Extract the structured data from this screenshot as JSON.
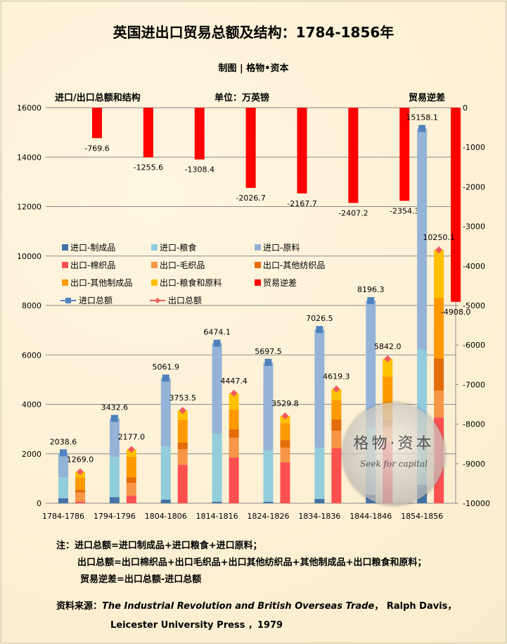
{
  "title": "英国进出口贸易总额及结构：1784-1856年",
  "subtitle": "制图 | 格物•资本",
  "watermark": {
    "cn": "格物·资本",
    "en": "Seek for capital"
  },
  "chart_data": {
    "type": "bar",
    "left_axis_title": "进口/出口总额和结构",
    "unit_label": "单位：万英镑",
    "right_axis_title": "贸易逆差",
    "ylim_left": [
      0,
      16000
    ],
    "yticks_left": [
      0,
      2000,
      4000,
      6000,
      8000,
      10000,
      12000,
      14000,
      16000
    ],
    "ylim_right": [
      -10000,
      0
    ],
    "yticks_right": [
      0,
      -1000,
      -2000,
      -3000,
      -4000,
      -5000,
      -6000,
      -7000,
      -8000,
      -9000,
      -10000
    ],
    "grid": true,
    "legend_placement": "center-left",
    "categories": [
      "1784-1786",
      "1794-1796",
      "1804-1806",
      "1814-1816",
      "1824-1826",
      "1834-1836",
      "1844-1846",
      "1854-1856"
    ],
    "import_series": [
      {
        "name": "进口-制成品",
        "color": "#4472a8",
        "values": [
          200,
          250,
          150,
          60,
          60,
          170,
          340,
          740
        ]
      },
      {
        "name": "进口-粮食",
        "color": "#92cddc",
        "values": [
          850,
          1630,
          2150,
          2760,
          2070,
          2080,
          2730,
          5470
        ]
      },
      {
        "name": "进口-原料",
        "color": "#95b3d7",
        "values": [
          988.6,
          1552.6,
          2761.9,
          3654.1,
          3567.5,
          4776.5,
          5126.3,
          8948.1
        ]
      }
    ],
    "export_series": [
      {
        "name": "出口-棉织品",
        "color": "#ff5050",
        "values": [
          60,
          310,
          1560,
          1850,
          1650,
          2220,
          2500,
          3470
        ]
      },
      {
        "name": "出口-毛织品",
        "color": "#f79646",
        "values": [
          370,
          510,
          630,
          800,
          600,
          710,
          600,
          1080
        ]
      },
      {
        "name": "出口-其他纺织品",
        "color": "#e46c0a",
        "values": [
          110,
          230,
          260,
          340,
          310,
          460,
          300,
          1310
        ]
      },
      {
        "name": "出口-其他制成品",
        "color": "#ff9900",
        "values": [
          510,
          830,
          910,
          800,
          680,
          790,
          1720,
          2450
        ]
      },
      {
        "name": "出口-粮食和原料",
        "color": "#ffc000",
        "values": [
          219,
          297,
          393.5,
          657.4,
          289.8,
          439.3,
          722,
          1940.1
        ]
      }
    ],
    "deficit_series": {
      "name": "贸易逆差",
      "color": "#ff0000",
      "values": [
        -769.6,
        -1255.6,
        -1308.4,
        -2026.7,
        -2167.7,
        -2407.2,
        -2354.3,
        -4908.0
      ]
    },
    "import_total": {
      "name": "进口总额",
      "color": "#4f81bd",
      "values": [
        2038.6,
        3432.6,
        5061.9,
        6474.1,
        5697.5,
        7026.5,
        8196.3,
        15158.1
      ]
    },
    "export_total": {
      "name": "出口总额",
      "color": "#f05a5a",
      "values": [
        1269.0,
        2177.0,
        3753.5,
        4447.4,
        3529.8,
        4619.3,
        5842.0,
        10250.1
      ]
    }
  },
  "notes": [
    "注：进口总额=进口制成品+进口粮食+进口原料；",
    "出口总额=出口棉织品+出口毛织品+出口其他纺织品+其他制成品+出口粮食和原料；",
    "贸易逆差=出口总额-进口总额"
  ],
  "source": {
    "label": "资料来源：",
    "book": "The Industrial Revolution and British Overseas Trade",
    "rest1": "， Ralph Davis，",
    "rest2": "Leicester University Press ，1979"
  }
}
